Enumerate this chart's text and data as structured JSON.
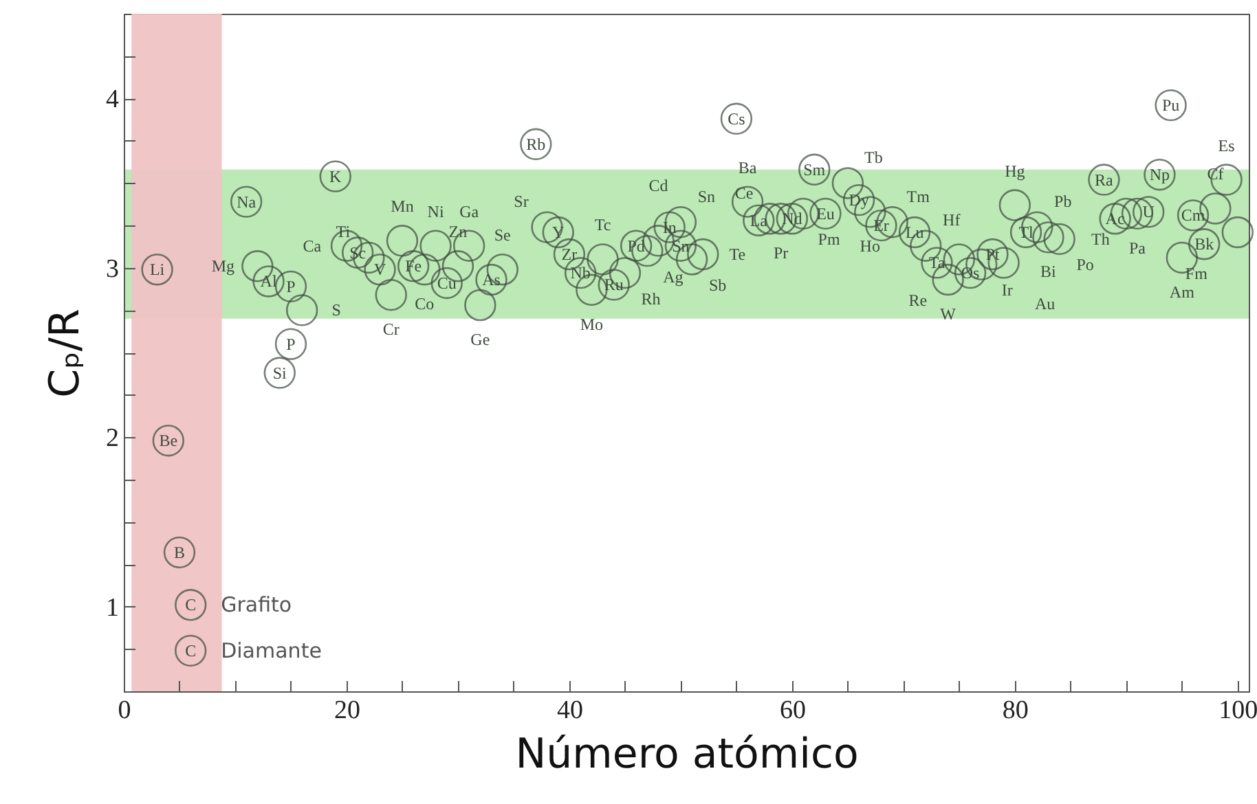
{
  "chart_data": {
    "type": "scatter",
    "xlabel": "Número atómico",
    "ylabel": "Cₚ/R",
    "x": [
      3,
      4,
      5,
      6,
      6,
      11,
      12,
      13,
      14,
      15,
      15,
      16,
      19,
      20,
      21,
      22,
      23,
      24,
      25,
      26,
      27,
      28,
      29,
      30,
      31,
      32,
      33,
      34,
      37,
      38,
      39,
      40,
      41,
      42,
      43,
      44,
      45,
      46,
      47,
      48,
      49,
      50,
      50,
      51,
      52,
      55,
      56,
      57,
      58,
      59,
      60,
      61,
      62,
      63,
      65,
      66,
      67,
      68,
      69,
      71,
      72,
      73,
      74,
      75,
      76,
      77,
      78,
      79,
      80,
      81,
      82,
      83,
      84,
      88,
      89,
      90,
      91,
      92,
      93,
      94,
      95,
      96,
      97,
      98,
      99,
      100
    ],
    "series": [
      {
        "color": "#3d4a3d",
        "values": [
          2.99,
          1.98,
          1.32,
          1.01,
          0.74,
          3.39,
          3.01,
          2.92,
          2.38,
          2.89,
          2.55,
          2.75,
          3.54,
          3.13,
          3.09,
          3.06,
          2.99,
          2.84,
          3.16,
          3.01,
          2.99,
          3.13,
          2.91,
          3.01,
          3.13,
          2.78,
          2.93,
          2.99,
          3.73,
          3.24,
          3.21,
          3.08,
          2.97,
          2.87,
          3.05,
          2.9,
          2.97,
          3.13,
          3.1,
          3.16,
          3.24,
          3.27,
          3.13,
          3.05,
          3.08,
          3.88,
          3.39,
          3.28,
          3.29,
          3.29,
          3.29,
          3.32,
          3.58,
          3.32,
          3.5,
          3.4,
          3.33,
          3.25,
          3.27,
          3.21,
          3.13,
          3.03,
          2.93,
          3.05,
          2.97,
          3.02,
          3.08,
          3.03,
          3.37,
          3.21,
          3.24,
          3.18,
          3.17,
          3.52,
          3.29,
          3.32,
          3.32,
          3.33,
          3.55,
          3.96,
          3.06,
          3.31,
          3.14,
          3.35,
          3.52,
          3.21
        ],
        "value_labels": [
          "Li",
          "Be",
          "B",
          "C",
          "C",
          "Na",
          "Mg",
          "Al",
          "Si",
          "P",
          "P",
          "S",
          "K",
          "Ca",
          "Sc",
          "Ti",
          "V",
          "Cr",
          "Mn",
          "Fe",
          "Co",
          "Ni",
          "Cu",
          "Zn",
          "Ga",
          "Ge",
          "As",
          "Se",
          "Rb",
          "Sr",
          "Y",
          "Zr",
          "Nb",
          "Mo",
          "Tc",
          "Ru",
          "Rh",
          "Pd",
          "Ag",
          "Cd",
          "In",
          "Sn",
          "Sn",
          "Sb",
          "Te",
          "Cs",
          "Ba",
          "La",
          "Ce",
          "Pr",
          "Nd",
          "Pm",
          "Sm",
          "Eu",
          "Tb",
          "Dy",
          "Ho",
          "Er",
          "Tm",
          "Lu",
          "Hf",
          "Ta",
          "W",
          "Re",
          "Os",
          "Ir",
          "Pt",
          "Au",
          "Hg",
          "Tl",
          "Pb",
          "Bi",
          "Po",
          "Ra",
          "Ac",
          "Th",
          "Pa",
          "U",
          "Np",
          "Pu",
          "Am",
          "Cm",
          "Bk",
          "Cf",
          "Es",
          "Fm"
        ]
      }
    ],
    "xlim": [
      0,
      101
    ],
    "ylim": [
      0.5,
      4.5
    ],
    "xticks": [
      0,
      {
        "value": 5,
        "label": null
      },
      {
        "value": 10,
        "label": null
      },
      {
        "value": 15,
        "label": null
      },
      20,
      {
        "value": 25,
        "label": null
      },
      {
        "value": 30,
        "label": null
      },
      {
        "value": 35,
        "label": null
      },
      40,
      {
        "value": 45,
        "label": null
      },
      {
        "value": 50,
        "label": null
      },
      {
        "value": 55,
        "label": null
      },
      60,
      {
        "value": 65,
        "label": null
      },
      {
        "value": 70,
        "label": null
      },
      {
        "value": 75,
        "label": null
      },
      80,
      {
        "value": 85,
        "label": null
      },
      {
        "value": 90,
        "label": null
      },
      {
        "value": 95,
        "label": null
      },
      100
    ],
    "yticks": [
      {
        "value": 0.75,
        "label": null
      },
      1,
      {
        "value": 1.25,
        "label": null
      },
      {
        "value": 1.5,
        "label": null
      },
      {
        "value": 1.75,
        "label": null
      },
      2,
      {
        "value": 2.25,
        "label": null
      },
      {
        "value": 2.5,
        "label": null
      },
      {
        "value": 2.75,
        "label": null
      },
      3,
      {
        "value": 3.25,
        "label": null
      },
      {
        "value": 3.5,
        "label": null
      },
      {
        "value": 3.75,
        "label": null
      },
      4,
      {
        "value": 4.25,
        "label": null
      }
    ],
    "bands": [
      {
        "axis": "y",
        "from": 2.7,
        "to": 3.58,
        "color": "#b9e8b3"
      },
      {
        "axis": "x",
        "from": 0.7,
        "to": 8.8,
        "color": "#efc3c4"
      }
    ],
    "annotations": [
      {
        "text": "Grafito",
        "x": 6,
        "y": 1.01
      },
      {
        "text": "Diamante",
        "x": 6,
        "y": 0.74
      }
    ],
    "marker": "circle",
    "grid": false
  }
}
